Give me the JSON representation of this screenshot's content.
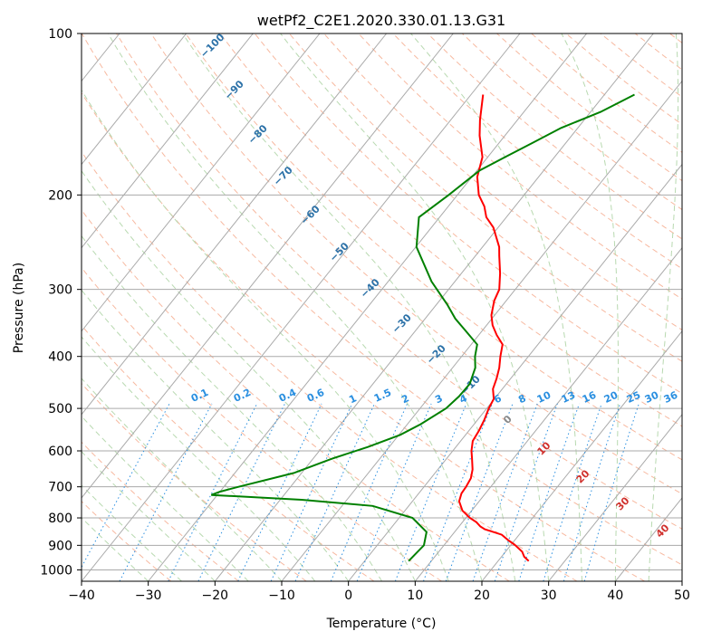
{
  "chart_data": {
    "type": "line",
    "title": "wetPf2_C2E1.2020.330.01.13.G31",
    "xlabel": "Temperature (°C)",
    "ylabel": "Pressure (hPa)",
    "xlim": [
      -40,
      50
    ],
    "ylim": [
      1050,
      100
    ],
    "y_scale": "log",
    "x_ticks": [
      "−40",
      "−30",
      "−20",
      "−10",
      "0",
      "10",
      "20",
      "30",
      "40",
      "50"
    ],
    "y_ticks": [
      "100",
      "200",
      "300",
      "400",
      "500",
      "600",
      "700",
      "800",
      "900",
      "1000"
    ],
    "grid": true,
    "skew": "skew-T log-p",
    "series": [
      {
        "color": "#ff0000",
        "x": [
          24.6,
          23.4,
          22.5,
          20.7,
          19.0,
          17.4,
          15.8,
          14.2,
          13.2,
          12.1,
          10.6,
          8.6,
          7.0,
          6.4,
          6.3,
          6.0,
          5.2,
          3.8,
          2.8,
          1.8,
          1.5,
          1.0,
          0.3,
          -0.1,
          -1.4,
          -2.1,
          -3.0,
          -4.2,
          -5.3,
          -7.3,
          -9.1,
          -10.5,
          -11.8,
          -12.4,
          -14.2,
          -16.4,
          -17.5,
          -20.7,
          -23.0,
          -24.6,
          -26.8,
          -29.2,
          -30.8,
          -33.8,
          -35.6,
          -38.2
        ],
        "y": [
          963,
          945,
          925,
          900,
          880,
          860,
          850,
          840,
          830,
          815,
          800,
          775,
          745,
          720,
          700,
          675,
          650,
          620,
          600,
          575,
          550,
          525,
          500,
          480,
          460,
          440,
          420,
          400,
          380,
          365,
          350,
          335,
          315,
          300,
          280,
          260,
          250,
          230,
          220,
          210,
          200,
          185,
          170,
          155,
          145,
          130
        ]
      },
      {
        "color": "#008000",
        "x": [
          6.6,
          7.0,
          5.8,
          2.0,
          -5.4,
          -16.8,
          -30.9,
          -30.0,
          -27.8,
          -21.2,
          -17.1,
          -13.2,
          -9.8,
          -8.0,
          -6.1,
          -5.6,
          -5.5,
          -6.6,
          -8.0,
          -9.1,
          -12.2,
          -15.5,
          -18.4,
          -23.5,
          -29.9,
          -33.1,
          -31.3,
          -29.6,
          -27.4,
          -25.0,
          -22.5,
          -18.5,
          -15.5
        ],
        "y": [
          963,
          900,
          850,
          800,
          760,
          740,
          725,
          715,
          700,
          660,
          620,
          590,
          560,
          535,
          500,
          475,
          450,
          420,
          400,
          380,
          360,
          340,
          320,
          290,
          250,
          220,
          200,
          180,
          170,
          160,
          150,
          140,
          130
        ]
      }
    ]
  }
}
